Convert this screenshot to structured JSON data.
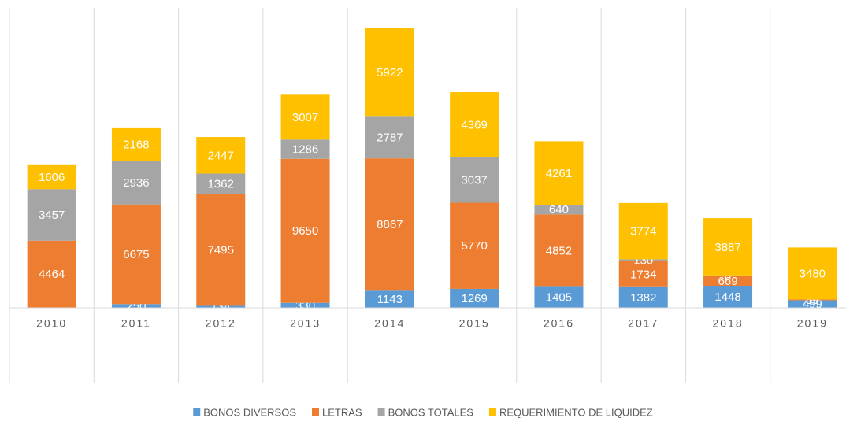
{
  "chart_data": {
    "type": "stacked_bar",
    "categories": [
      "2010",
      "2011",
      "2012",
      "2013",
      "2014",
      "2015",
      "2016",
      "2017",
      "2018",
      "2019"
    ],
    "series": [
      {
        "name": "BONOS DIVERSOS",
        "color": "#5b9bd5",
        "values": [
          28,
          250,
          134,
          330,
          1143,
          1269,
          1405,
          1382,
          1448,
          499
        ]
      },
      {
        "name": "LETRAS",
        "color": "#ed7d31",
        "values": [
          4464,
          6675,
          7495,
          9650,
          8867,
          5770,
          4852,
          1734,
          669,
          59
        ]
      },
      {
        "name": "BONOS TOTALES",
        "color": "#a5a5a5",
        "values": [
          3457,
          2936,
          1362,
          1286,
          2787,
          3037,
          640,
          130,
          0,
          0
        ]
      },
      {
        "name": "REQUERIMIENTO DE LIQUIDEZ",
        "color": "#ffc000",
        "values": [
          1606,
          2168,
          2447,
          3007,
          5922,
          4369,
          4261,
          3774,
          3887,
          3480
        ]
      }
    ],
    "legend": "bottom"
  }
}
